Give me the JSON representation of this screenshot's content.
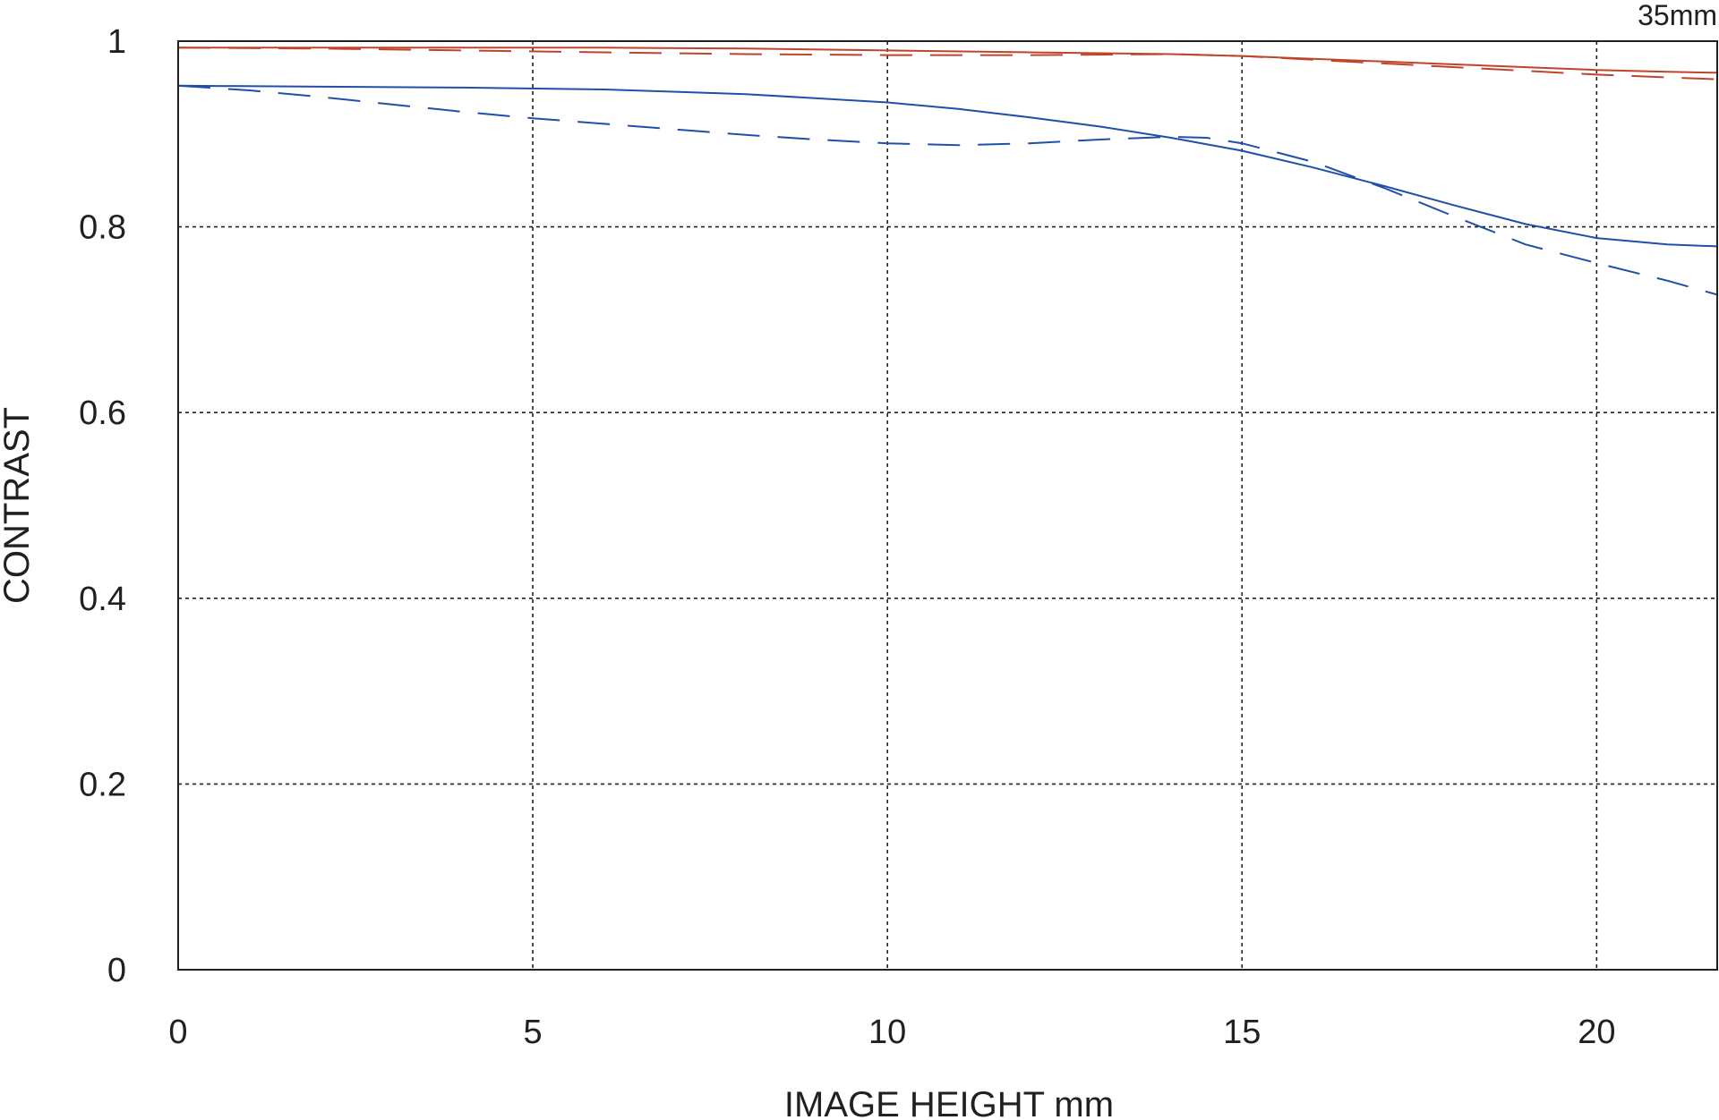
{
  "chart_data": {
    "type": "line",
    "title": "",
    "corner_label": "35mm",
    "xlabel": "IMAGE HEIGHT  mm",
    "ylabel": "CONTRAST",
    "xlim": [
      0,
      21.7
    ],
    "ylim": [
      0,
      1
    ],
    "x_ticks": [
      0,
      5,
      10,
      15,
      20
    ],
    "y_ticks": [
      0,
      0.2,
      0.4,
      0.6,
      0.8,
      1
    ],
    "y_tick_labels": [
      "0",
      "0.2",
      "0.4",
      "0.6",
      "0.8",
      "1"
    ],
    "x_tick_labels": [
      "0",
      "5",
      "10",
      "15",
      "20"
    ],
    "grid": true,
    "series": [
      {
        "color": "#c0442b",
        "dash": "solid",
        "x": [
          0,
          2,
          4,
          6,
          8,
          10,
          12,
          14,
          15,
          16,
          17,
          18,
          19,
          20,
          21,
          21.7
        ],
        "y": [
          0.993,
          0.993,
          0.993,
          0.993,
          0.992,
          0.99,
          0.988,
          0.986,
          0.984,
          0.981,
          0.978,
          0.975,
          0.972,
          0.969,
          0.967,
          0.966
        ]
      },
      {
        "color": "#c0442b",
        "dash": "dashed",
        "x": [
          0,
          2,
          4,
          6,
          8,
          10,
          12,
          14,
          15,
          16,
          17,
          18,
          19,
          20,
          21,
          21.7
        ],
        "y": [
          0.993,
          0.992,
          0.99,
          0.988,
          0.986,
          0.985,
          0.985,
          0.986,
          0.984,
          0.98,
          0.976,
          0.972,
          0.968,
          0.964,
          0.961,
          0.959
        ]
      },
      {
        "color": "#1f4fa8",
        "dash": "solid",
        "x": [
          0,
          2,
          4,
          6,
          8,
          10,
          11,
          12,
          13,
          14,
          15,
          16,
          17,
          18,
          19,
          20,
          21,
          21.7
        ],
        "y": [
          0.952,
          0.951,
          0.95,
          0.948,
          0.943,
          0.934,
          0.927,
          0.918,
          0.908,
          0.896,
          0.882,
          0.864,
          0.844,
          0.823,
          0.803,
          0.788,
          0.781,
          0.779
        ]
      },
      {
        "color": "#1f4fa8",
        "dash": "dashed",
        "x": [
          0,
          1,
          2,
          3,
          4,
          5,
          6,
          7,
          8,
          9,
          10,
          11,
          12,
          13,
          14,
          14.5,
          15,
          16,
          17,
          18,
          19,
          20,
          21,
          21.7
        ],
        "y": [
          0.952,
          0.947,
          0.94,
          0.932,
          0.924,
          0.917,
          0.911,
          0.905,
          0.899,
          0.894,
          0.89,
          0.888,
          0.89,
          0.894,
          0.897,
          0.896,
          0.89,
          0.87,
          0.842,
          0.811,
          0.781,
          0.761,
          0.742,
          0.727
        ]
      }
    ]
  }
}
